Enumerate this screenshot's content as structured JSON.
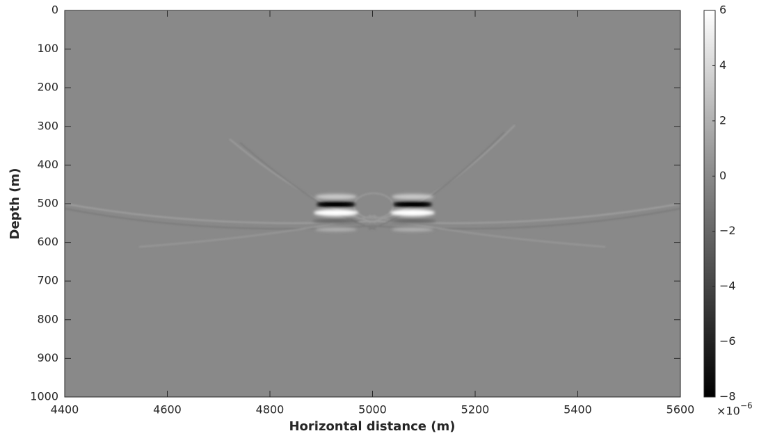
{
  "chart_data": {
    "type": "heatmap",
    "xlabel": "Horizontal distance (m)",
    "ylabel": "Depth (m)",
    "xlim": [
      4400,
      5600
    ],
    "xticks": [
      4400,
      4600,
      4800,
      5000,
      5200,
      5400,
      5600
    ],
    "ylim": [
      1000,
      0
    ],
    "yticks": [
      0,
      100,
      200,
      300,
      400,
      500,
      600,
      700,
      800,
      900,
      1000
    ],
    "colormap": "gray",
    "clim": [
      -8,
      6
    ],
    "cticks": [
      -8,
      -6,
      -4,
      -2,
      0,
      2,
      4,
      6
    ],
    "colorbar_multiplier": "×10",
    "colorbar_exponent": "−6"
  }
}
